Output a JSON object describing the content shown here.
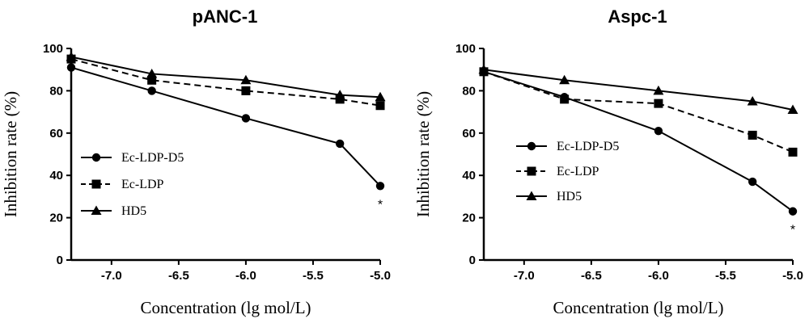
{
  "chart_data": [
    {
      "type": "line",
      "title": "pANC-1",
      "xlabel": "Concentration (lg mol/L)",
      "ylabel": "Inhibition rate (%)",
      "xlim": [
        -7.3,
        -5.0
      ],
      "ylim": [
        0,
        100
      ],
      "xticks": [
        -7.0,
        -6.5,
        -6.0,
        -5.5,
        -5.0
      ],
      "xtick_labels": [
        "-7.0",
        "-6.5",
        "-6.0",
        "-5.5",
        "-5.0"
      ],
      "yticks": [
        0,
        20,
        40,
        60,
        80,
        100
      ],
      "ytick_labels": [
        "0",
        "20",
        "40",
        "60",
        "80",
        "100"
      ],
      "legend_position": "center-left",
      "series": [
        {
          "name": "Ec-LDP-D5",
          "marker": "circle",
          "line": "solid",
          "x": [
            -7.3,
            -6.7,
            -6.0,
            -5.3,
            -5.0
          ],
          "y": [
            91,
            80,
            67,
            55,
            35
          ]
        },
        {
          "name": "Ec-LDP",
          "marker": "square",
          "line": "dashed",
          "x": [
            -7.3,
            -6.7,
            -6.0,
            -5.3,
            -5.0
          ],
          "y": [
            95,
            85,
            80,
            76,
            73
          ]
        },
        {
          "name": "HD5",
          "marker": "triangle",
          "line": "solid",
          "x": [
            -7.3,
            -6.7,
            -6.0,
            -5.3,
            -5.0
          ],
          "y": [
            96,
            88,
            85,
            78,
            77
          ]
        }
      ],
      "annotations": [
        {
          "text": "*",
          "x": -5.0,
          "y": 35
        }
      ]
    },
    {
      "type": "line",
      "title": "Aspc-1",
      "xlabel": "Concentration (lg mol/L)",
      "ylabel": "Inhibition rate (%)",
      "xlim": [
        -7.3,
        -5.0
      ],
      "ylim": [
        0,
        100
      ],
      "xticks": [
        -7.0,
        -6.5,
        -6.0,
        -5.5,
        -5.0
      ],
      "xtick_labels": [
        "-7.0",
        "-6.5",
        "-6.0",
        "-5.5",
        "-5.0"
      ],
      "yticks": [
        0,
        20,
        40,
        60,
        80,
        100
      ],
      "ytick_labels": [
        "0",
        "20",
        "40",
        "60",
        "80",
        "100"
      ],
      "legend_position": "center-left",
      "series": [
        {
          "name": "Ec-LDP-D5",
          "marker": "circle",
          "line": "solid",
          "x": [
            -7.3,
            -6.7,
            -6.0,
            -5.3,
            -5.0
          ],
          "y": [
            89,
            77,
            61,
            37,
            23
          ]
        },
        {
          "name": "Ec-LDP",
          "marker": "square",
          "line": "dashed",
          "x": [
            -7.3,
            -6.7,
            -6.0,
            -5.3,
            -5.0
          ],
          "y": [
            89,
            76,
            74,
            59,
            51
          ]
        },
        {
          "name": "HD5",
          "marker": "triangle",
          "line": "solid",
          "x": [
            -7.3,
            -6.7,
            -6.0,
            -5.3,
            -5.0
          ],
          "y": [
            90,
            85,
            80,
            75,
            71
          ]
        }
      ],
      "annotations": [
        {
          "text": "*",
          "x": -5.0,
          "y": 23
        }
      ]
    }
  ]
}
